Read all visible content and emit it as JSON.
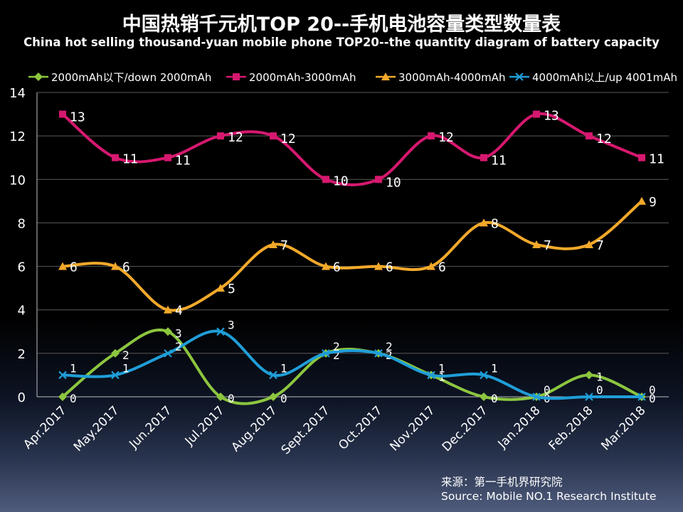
{
  "title": "中国热销千元机TOP 20--手机电池容量类型数量表",
  "subtitle": "China hot selling thousand-yuan mobile phone TOP20--the quantity diagram of battery capacity",
  "source_line1": "来源：第一手机界研究院",
  "source_line2": "Source: Mobile NO.1 Research Institute",
  "chart_data": {
    "type": "line",
    "title": "中国热销千元机TOP 20--手机电池容量类型数量表",
    "subtitle": "China hot selling thousand-yuan mobile phone TOP20--the quantity diagram of battery capacity",
    "xlabel": "",
    "ylabel": "",
    "categories": [
      "Apr.2017",
      "May.2017",
      "Jun.2017",
      "Jul.2017",
      "Aug.2017",
      "Sept.2017",
      "Oct.2017",
      "Nov.2017",
      "Dec.2017",
      "Jan.2018",
      "Feb.2018",
      "Mar.2018"
    ],
    "yticks": [
      "0",
      "2",
      "4",
      "6",
      "8",
      "10",
      "12",
      "14"
    ],
    "ylim": [
      0,
      14
    ],
    "grid": true,
    "smooth": true,
    "legend_position": "top",
    "series": [
      {
        "name": "2000mAh以下/down 2000mAh",
        "color": "#8cc63f",
        "marker": "diamond",
        "values": [
          0,
          2,
          3,
          0,
          0,
          2,
          2,
          1,
          0,
          0,
          1,
          0
        ],
        "labels": [
          "0",
          "2",
          "3",
          "0",
          "0",
          "2",
          "2",
          "1",
          "0",
          "0",
          "1",
          "0"
        ]
      },
      {
        "name": "2000mAh-3000mAh",
        "color": "#d6186f",
        "marker": "square",
        "values": [
          13,
          11,
          11,
          12,
          12,
          10,
          10,
          12,
          11,
          13,
          12,
          11
        ],
        "labels": [
          "13",
          "11",
          "11",
          "12",
          "12",
          "10",
          "10",
          "12",
          "11",
          "13",
          "12",
          "11"
        ]
      },
      {
        "name": "3000mAh-4000mAh",
        "color": "#f2a92a",
        "marker": "triangle",
        "values": [
          6,
          6,
          4,
          5,
          7,
          6,
          6,
          6,
          8,
          7,
          7,
          9
        ],
        "labels": [
          "6",
          "6",
          "4",
          "5",
          "7",
          "6",
          "6",
          "6",
          "8",
          "7",
          "7",
          "9"
        ]
      },
      {
        "name": "4000mAh以上/up 4001mAh",
        "color": "#1f9ed8",
        "marker": "x",
        "values": [
          1,
          1,
          2,
          3,
          1,
          2,
          2,
          1,
          1,
          0,
          0,
          0
        ],
        "labels": [
          "1",
          "1",
          "2",
          "3",
          "1",
          "2",
          "2",
          "1",
          "1",
          "0",
          "0",
          "0"
        ]
      }
    ]
  }
}
